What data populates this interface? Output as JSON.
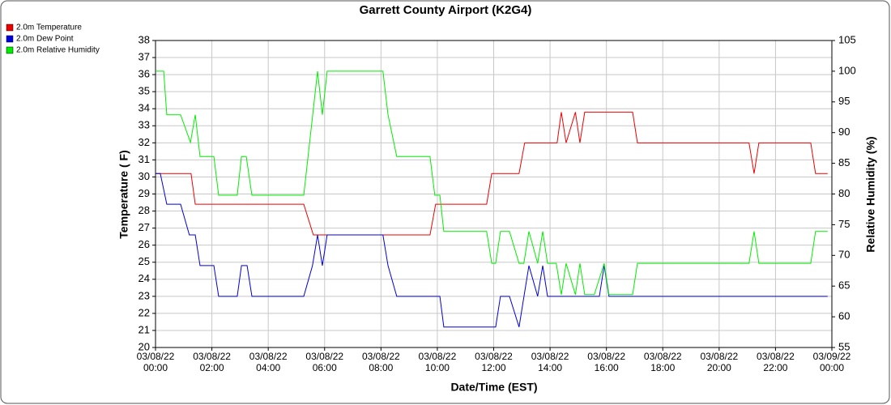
{
  "chart_data": {
    "type": "line",
    "title": "Garrett County Airport (K2G4)",
    "xlabel": "Date/Time (EST)",
    "ylabel": "Temperature ( F)",
    "y2label": "Relative Humidity (%)",
    "xlim": [
      0,
      24
    ],
    "xticks": [
      {
        "value": 0,
        "label": "03/08/22 00:00"
      },
      {
        "value": 2,
        "label": "03/08/22 02:00"
      },
      {
        "value": 4,
        "label": "03/08/22 04:00"
      },
      {
        "value": 6,
        "label": "03/08/22 06:00"
      },
      {
        "value": 8,
        "label": "03/08/22 08:00"
      },
      {
        "value": 10,
        "label": "03/08/22 10:00"
      },
      {
        "value": 12,
        "label": "03/08/22 12:00"
      },
      {
        "value": 14,
        "label": "03/08/22 14:00"
      },
      {
        "value": 16,
        "label": "03/08/22 16:00"
      },
      {
        "value": 18,
        "label": "03/08/22 18:00"
      },
      {
        "value": 20,
        "label": "03/08/22 20:00"
      },
      {
        "value": 22,
        "label": "03/08/22 22:00"
      },
      {
        "value": 24,
        "label": "03/09/22 00:00"
      }
    ],
    "ylim": [
      20,
      38
    ],
    "yticks": [
      20,
      21,
      22,
      23,
      24,
      25,
      26,
      27,
      28,
      29,
      30,
      31,
      32,
      33,
      34,
      35,
      36,
      37,
      38
    ],
    "y2lim": [
      55,
      105
    ],
    "y2ticks": [
      55,
      60,
      65,
      70,
      75,
      80,
      85,
      90,
      95,
      100,
      105
    ],
    "grid": true,
    "legend": "top-left",
    "series": [
      {
        "name": "2.0m Temperature",
        "color": "#ee0000",
        "x": [
          0,
          1.26,
          1.41,
          5.26,
          5.6,
          9.74,
          9.94,
          11.75,
          11.93,
          12.9,
          13.1,
          14.25,
          14.4,
          14.57,
          14.9,
          15.06,
          15.23,
          16.93,
          17.1,
          21.06,
          21.24,
          21.41,
          23.25,
          23.42,
          23.85
        ],
        "values": [
          30.2,
          30.2,
          28.4,
          28.4,
          26.6,
          26.6,
          28.4,
          28.4,
          30.2,
          30.2,
          32,
          32,
          33.8,
          32,
          33.8,
          32,
          33.8,
          33.8,
          32,
          32,
          30.2,
          32,
          32,
          30.2,
          30.2
        ]
      },
      {
        "name": "2.0m Dew Point",
        "color": "#0000dd",
        "x": [
          0,
          0.17,
          0.4,
          0.89,
          1.2,
          1.41,
          1.58,
          2.07,
          2.24,
          2.9,
          3.05,
          3.25,
          3.42,
          5.26,
          5.57,
          5.75,
          5.92,
          6.09,
          8.07,
          8.25,
          8.56,
          10.09,
          10.23,
          12.07,
          12.24,
          12.56,
          12.9,
          13.25,
          13.56,
          13.74,
          13.91,
          15.75,
          15.92,
          16.09,
          23.85
        ],
        "values": [
          30.2,
          30.2,
          28.4,
          28.4,
          26.6,
          26.6,
          24.8,
          24.8,
          23,
          23,
          24.8,
          24.8,
          23,
          23,
          24.8,
          26.6,
          24.8,
          26.6,
          26.6,
          24.8,
          23,
          23,
          21.2,
          21.2,
          23,
          23,
          21.2,
          24.8,
          23,
          24.8,
          23,
          23,
          24.8,
          23,
          23
        ]
      },
      {
        "name": "2.0m Relative Humidity",
        "color": "#00ee00",
        "axis": "y2",
        "x": [
          0,
          0.29,
          0.4,
          0.89,
          1.24,
          1.41,
          1.58,
          2.07,
          2.24,
          2.9,
          3.05,
          3.22,
          3.42,
          5.26,
          5.75,
          5.92,
          6.09,
          8.07,
          8.25,
          8.56,
          9.74,
          9.91,
          10.09,
          10.23,
          11.75,
          11.93,
          12.07,
          12.24,
          12.56,
          12.9,
          13.07,
          13.25,
          13.56,
          13.74,
          13.91,
          14.22,
          14.4,
          14.57,
          14.9,
          15.06,
          15.23,
          15.57,
          15.92,
          16.09,
          16.93,
          17.1,
          21.06,
          21.24,
          21.41,
          23.25,
          23.42,
          23.85
        ],
        "values": [
          100,
          100,
          92.9,
          92.9,
          88.4,
          92.9,
          86.1,
          86.1,
          79.8,
          79.8,
          86.1,
          86.1,
          79.8,
          79.8,
          100,
          92.9,
          100,
          100,
          92.9,
          86.1,
          86.1,
          79.8,
          79.8,
          73.9,
          73.9,
          68.7,
          68.7,
          73.9,
          73.9,
          68.7,
          68.7,
          73.9,
          68.7,
          73.9,
          68.7,
          68.7,
          63.6,
          68.7,
          63.6,
          68.7,
          63.6,
          63.6,
          68.7,
          63.6,
          63.6,
          68.7,
          68.7,
          73.9,
          68.7,
          68.7,
          73.9,
          73.9
        ]
      }
    ]
  }
}
